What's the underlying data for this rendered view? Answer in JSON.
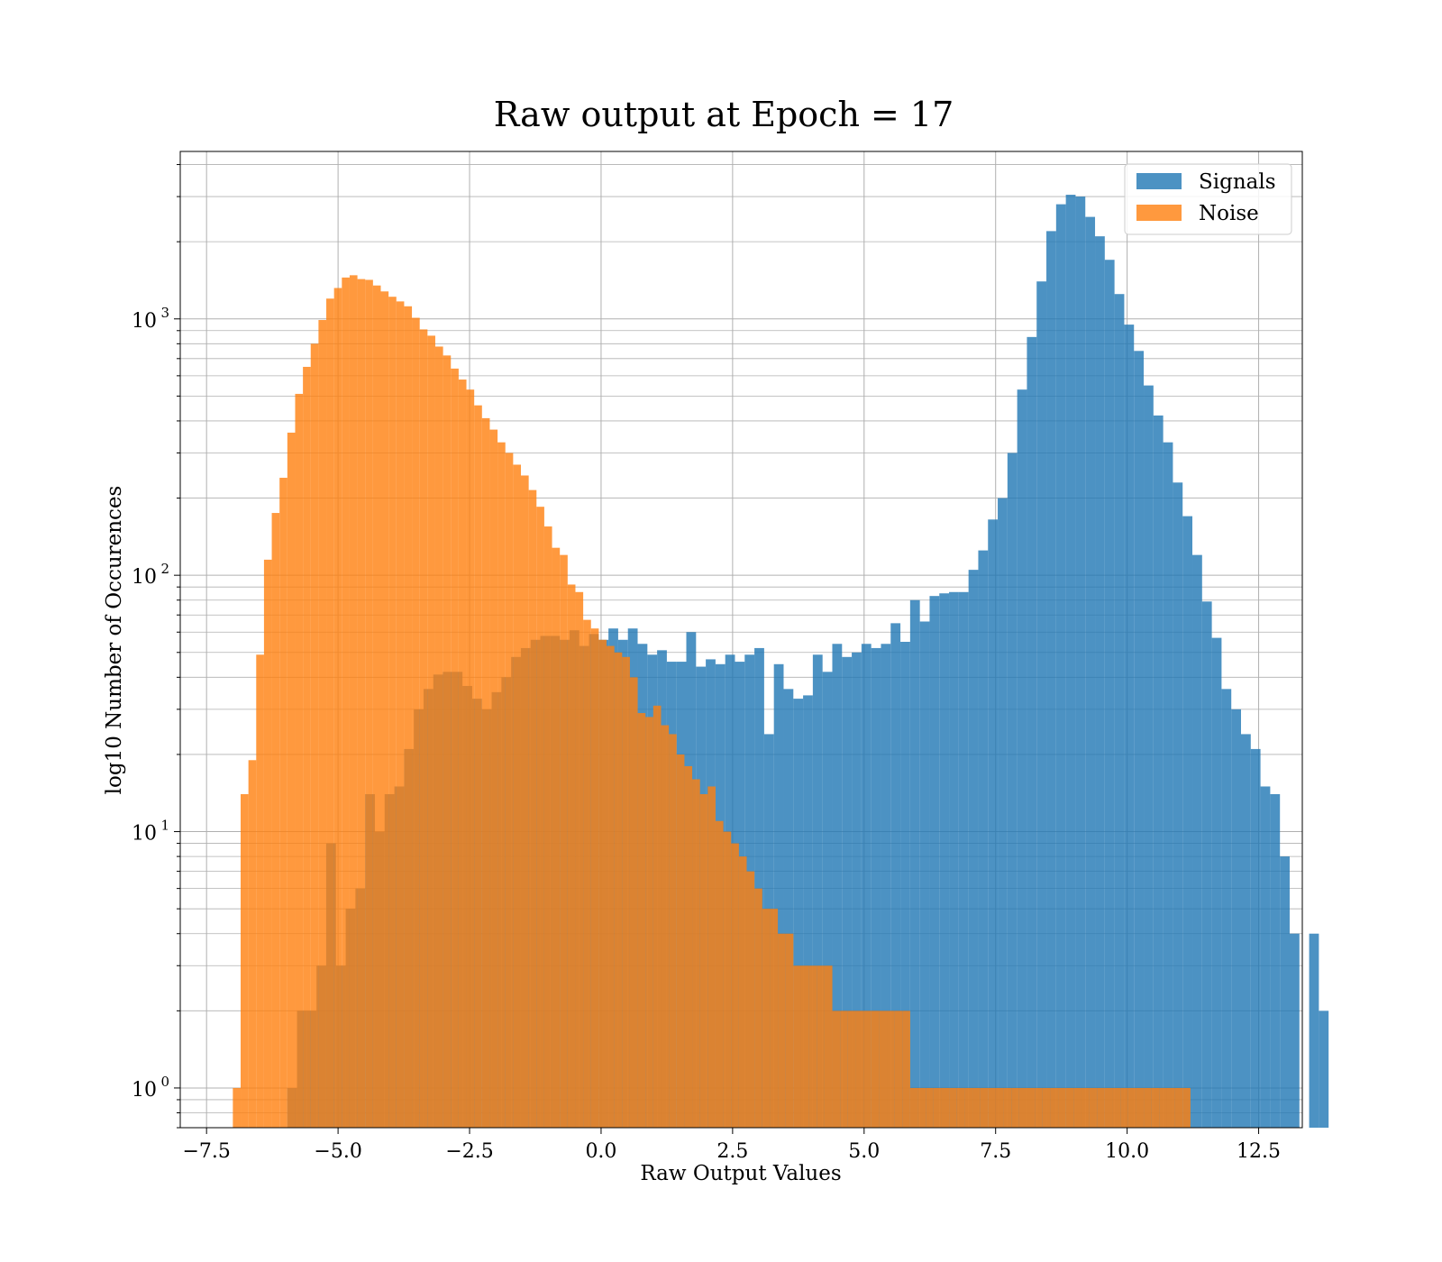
{
  "chart_data": {
    "type": "bar",
    "title": "Raw output at Epoch = 17",
    "xlabel": "Raw Output Values",
    "ylabel": "log10 Number of Occurences",
    "xlim": [
      -8.0,
      13.33
    ],
    "ylim": [
      0.7,
      4500
    ],
    "yscale": "log",
    "grid": true,
    "legend_position": "top-right",
    "x_ticks": [
      -7.5,
      -5.0,
      -2.5,
      0.0,
      2.5,
      5.0,
      7.5,
      10.0,
      12.5
    ],
    "x_tick_labels": [
      "−7.5",
      "−5.0",
      "−2.5",
      "0.0",
      "2.5",
      "5.0",
      "7.5",
      "10.0",
      "12.5"
    ],
    "y_ticks": [
      1,
      10,
      100,
      1000
    ],
    "y_tick_labels": [
      {
        "base": "10",
        "exp": "0"
      },
      {
        "base": "10",
        "exp": "1"
      },
      {
        "base": "10",
        "exp": "2"
      },
      {
        "base": "10",
        "exp": "3"
      }
    ],
    "series": [
      {
        "name": "Signals",
        "color": "#1f77b4",
        "opacity": 0.8,
        "bin_start": -5.965,
        "bin_width": 0.185,
        "values": [
          1,
          2,
          2,
          3,
          9,
          3,
          5,
          6,
          14,
          10,
          14,
          15,
          21,
          30,
          36,
          41,
          42,
          42,
          37,
          33,
          30,
          35,
          40,
          48,
          52,
          56,
          58,
          58,
          56,
          61,
          53,
          59,
          56,
          62,
          56,
          62,
          54,
          49,
          51,
          46,
          46,
          60,
          44,
          47,
          45,
          49,
          46,
          49,
          52,
          24,
          45,
          36,
          33,
          34,
          49,
          42,
          54,
          48,
          50,
          54,
          52,
          54,
          65,
          55,
          80,
          66,
          83,
          85,
          86,
          86,
          105,
          125,
          165,
          200,
          300,
          530,
          850,
          1400,
          2200,
          2800,
          3050,
          3000,
          2500,
          2100,
          1700,
          1250,
          950,
          750,
          550,
          420,
          330,
          230,
          170,
          120,
          79,
          57,
          36,
          30,
          24,
          21,
          15,
          14,
          8,
          4,
          0,
          4,
          2
        ]
      },
      {
        "name": "Noise",
        "color": "#ff7f0e",
        "opacity": 0.8,
        "bin_start": -7.0,
        "bin_width": 0.148,
        "values": [
          1,
          14,
          19,
          49,
          115,
          175,
          240,
          360,
          510,
          650,
          800,
          990,
          1200,
          1320,
          1450,
          1480,
          1430,
          1420,
          1350,
          1280,
          1220,
          1170,
          1120,
          1010,
          910,
          860,
          780,
          720,
          640,
          580,
          530,
          460,
          410,
          370,
          330,
          300,
          270,
          245,
          215,
          185,
          155,
          128,
          120,
          92,
          86,
          67,
          62,
          56,
          53,
          50,
          48,
          40,
          29,
          28,
          31,
          26,
          24,
          20,
          18,
          16,
          14,
          15,
          11,
          10,
          9,
          8,
          7,
          6,
          5,
          5,
          4,
          4,
          3,
          3,
          3,
          3,
          3,
          2,
          2,
          2,
          2,
          2,
          2,
          2,
          2,
          2,
          2,
          1,
          1,
          1,
          1,
          1,
          1,
          1,
          1,
          1,
          1,
          1,
          1,
          1,
          1,
          1,
          1,
          1,
          1,
          1,
          1,
          1,
          1,
          1,
          1,
          1,
          1,
          1,
          1,
          1,
          1,
          1,
          1,
          1,
          1,
          1,
          1
        ]
      }
    ]
  }
}
